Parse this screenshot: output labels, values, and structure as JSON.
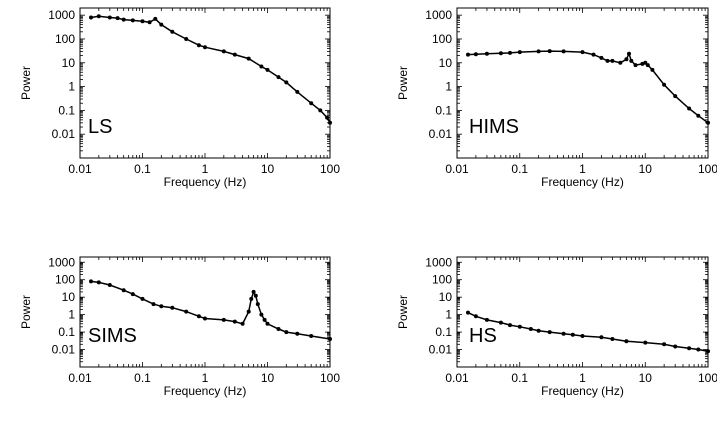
{
  "chart_data": [
    {
      "type": "scatter",
      "annotation": "LS",
      "xlabel": "Frequency (Hz)",
      "ylabel": "Power",
      "xscale": "log",
      "yscale": "log",
      "xlim": [
        0.01,
        100
      ],
      "ylim": [
        0.001,
        2000
      ],
      "x_ticks": [
        "0.01",
        "0.1",
        "1",
        "10",
        "100"
      ],
      "y_ticks": [
        "0.01",
        "0.1",
        "1",
        "10",
        "100",
        "1000"
      ],
      "points": [
        [
          0.015,
          800
        ],
        [
          0.02,
          900
        ],
        [
          0.03,
          800
        ],
        [
          0.04,
          750
        ],
        [
          0.05,
          650
        ],
        [
          0.07,
          600
        ],
        [
          0.1,
          550
        ],
        [
          0.13,
          500
        ],
        [
          0.16,
          700
        ],
        [
          0.2,
          400
        ],
        [
          0.3,
          200
        ],
        [
          0.5,
          100
        ],
        [
          0.8,
          55
        ],
        [
          1,
          45
        ],
        [
          2,
          30
        ],
        [
          3,
          22
        ],
        [
          5,
          15
        ],
        [
          8,
          7
        ],
        [
          10,
          5
        ],
        [
          15,
          2.5
        ],
        [
          20,
          1.5
        ],
        [
          30,
          0.6
        ],
        [
          50,
          0.2
        ],
        [
          70,
          0.1
        ],
        [
          90,
          0.05
        ],
        [
          100,
          0.03
        ]
      ]
    },
    {
      "type": "scatter",
      "annotation": "HIMS",
      "xlabel": "Frequency (Hz)",
      "ylabel": "Power",
      "xscale": "log",
      "yscale": "log",
      "xlim": [
        0.01,
        100
      ],
      "ylim": [
        0.001,
        2000
      ],
      "x_ticks": [
        "0.01",
        "0.1",
        "1",
        "10",
        "100"
      ],
      "y_ticks": [
        "0.01",
        "0.1",
        "1",
        "10",
        "100",
        "1000"
      ],
      "points": [
        [
          0.015,
          22
        ],
        [
          0.02,
          23
        ],
        [
          0.03,
          24
        ],
        [
          0.05,
          25
        ],
        [
          0.07,
          26
        ],
        [
          0.1,
          28
        ],
        [
          0.2,
          30
        ],
        [
          0.3,
          31
        ],
        [
          0.5,
          30
        ],
        [
          1,
          28
        ],
        [
          1.5,
          22
        ],
        [
          2,
          16
        ],
        [
          2.5,
          12
        ],
        [
          3,
          12
        ],
        [
          4,
          10
        ],
        [
          5,
          14
        ],
        [
          5.5,
          24
        ],
        [
          6,
          12
        ],
        [
          7,
          8
        ],
        [
          9,
          9
        ],
        [
          10,
          10
        ],
        [
          11,
          8
        ],
        [
          13,
          5
        ],
        [
          20,
          1.2
        ],
        [
          30,
          0.4
        ],
        [
          50,
          0.12
        ],
        [
          70,
          0.06
        ],
        [
          100,
          0.03
        ]
      ]
    },
    {
      "type": "scatter",
      "annotation": "SIMS",
      "xlabel": "Frequency (Hz)",
      "ylabel": "Power",
      "xscale": "log",
      "yscale": "log",
      "xlim": [
        0.01,
        100
      ],
      "ylim": [
        0.001,
        2000
      ],
      "x_ticks": [
        "0.01",
        "0.1",
        "1",
        "10",
        "100"
      ],
      "y_ticks": [
        "0.01",
        "0.1",
        "1",
        "10",
        "100",
        "1000"
      ],
      "points": [
        [
          0.015,
          80
        ],
        [
          0.02,
          70
        ],
        [
          0.03,
          50
        ],
        [
          0.05,
          25
        ],
        [
          0.07,
          15
        ],
        [
          0.1,
          8
        ],
        [
          0.15,
          4
        ],
        [
          0.2,
          3
        ],
        [
          0.3,
          2.5
        ],
        [
          0.5,
          1.5
        ],
        [
          0.8,
          0.8
        ],
        [
          1,
          0.6
        ],
        [
          2,
          0.5
        ],
        [
          3,
          0.4
        ],
        [
          4,
          0.3
        ],
        [
          5,
          1.5
        ],
        [
          5.5,
          8
        ],
        [
          6,
          20
        ],
        [
          6.5,
          12
        ],
        [
          7,
          4
        ],
        [
          8,
          1
        ],
        [
          9,
          0.5
        ],
        [
          10,
          0.3
        ],
        [
          15,
          0.15
        ],
        [
          20,
          0.1
        ],
        [
          30,
          0.08
        ],
        [
          50,
          0.06
        ],
        [
          100,
          0.04
        ]
      ]
    },
    {
      "type": "scatter",
      "annotation": "HS",
      "xlabel": "Frequency (Hz)",
      "ylabel": "Power",
      "xscale": "log",
      "yscale": "log",
      "xlim": [
        0.01,
        100
      ],
      "ylim": [
        0.001,
        2000
      ],
      "x_ticks": [
        "0.01",
        "0.1",
        "1",
        "10",
        "100"
      ],
      "y_ticks": [
        "0.01",
        "0.1",
        "1",
        "10",
        "100",
        "1000"
      ],
      "points": [
        [
          0.015,
          1.3
        ],
        [
          0.02,
          0.8
        ],
        [
          0.03,
          0.5
        ],
        [
          0.05,
          0.35
        ],
        [
          0.07,
          0.25
        ],
        [
          0.1,
          0.2
        ],
        [
          0.15,
          0.15
        ],
        [
          0.2,
          0.12
        ],
        [
          0.3,
          0.1
        ],
        [
          0.5,
          0.08
        ],
        [
          0.7,
          0.07
        ],
        [
          1,
          0.06
        ],
        [
          2,
          0.05
        ],
        [
          3,
          0.04
        ],
        [
          5,
          0.03
        ],
        [
          10,
          0.025
        ],
        [
          20,
          0.02
        ],
        [
          30,
          0.015
        ],
        [
          50,
          0.012
        ],
        [
          70,
          0.01
        ],
        [
          100,
          0.008
        ]
      ]
    }
  ]
}
